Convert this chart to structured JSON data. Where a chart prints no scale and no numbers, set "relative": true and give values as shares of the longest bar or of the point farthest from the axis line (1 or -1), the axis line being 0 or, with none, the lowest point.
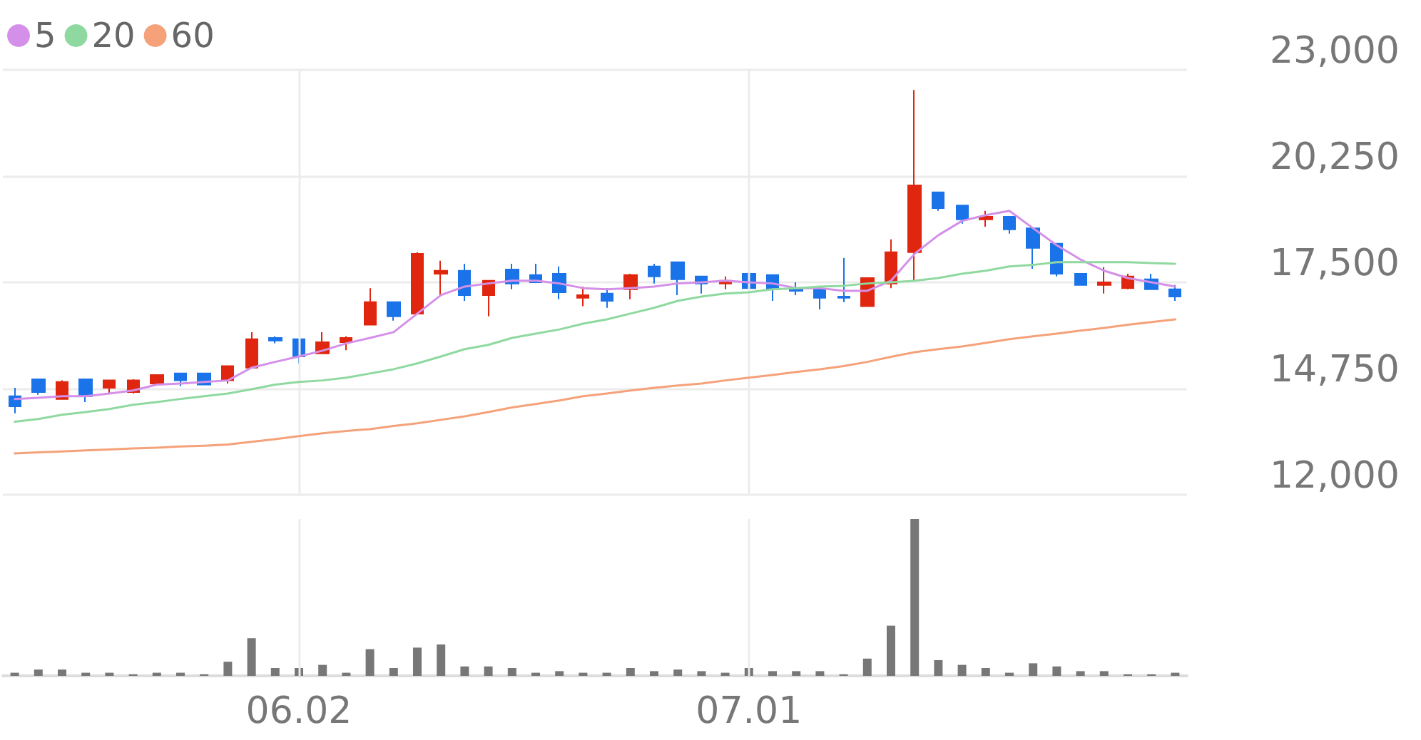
{
  "chart_data": [
    {
      "type": "candlestick",
      "categories": [
        null,
        null,
        null,
        null,
        null,
        null,
        null,
        null,
        null,
        null,
        null,
        null,
        "06.02",
        null,
        null,
        null,
        null,
        null,
        null,
        null,
        null,
        null,
        null,
        null,
        null,
        null,
        null,
        null,
        null,
        null,
        null,
        "07.01",
        null,
        null,
        null,
        null,
        null,
        null,
        null,
        null,
        null,
        null,
        null,
        null,
        null,
        null,
        null,
        null,
        null,
        null
      ],
      "tick_labels": "y",
      "ylim": [
        12000,
        23000
      ],
      "yticks": [
        {
          "value": 12000,
          "label": "12,000"
        },
        {
          "value": 14750,
          "label": "14,750"
        },
        {
          "value": 17500,
          "label": "17,500"
        },
        {
          "value": 20250,
          "label": "20,250"
        },
        {
          "value": 23000,
          "label": "23,000"
        }
      ],
      "grid": true,
      "legend": "top left",
      "marker": "none",
      "series": [
        {
          "type": "candlestick",
          "ohlc": [
            [
              14550,
              14770,
              14110,
              14290
            ],
            [
              14990,
              14990,
              14590,
              14660
            ],
            [
              14480,
              14960,
              14480,
              14920
            ],
            [
              14990,
              14990,
              14400,
              14550
            ],
            [
              14770,
              14960,
              14620,
              14960
            ],
            [
              14660,
              14990,
              14620,
              14960
            ],
            [
              14880,
              15100,
              14850,
              15100
            ],
            [
              15140,
              15140,
              14810,
              14960
            ],
            [
              15140,
              15140,
              14850,
              14850
            ],
            [
              14960,
              15330,
              14880,
              15330
            ],
            [
              15290,
              16210,
              15290,
              16030
            ],
            [
              16060,
              16100,
              15920,
              15990
            ],
            [
              16030,
              16030,
              15400,
              15580
            ],
            [
              15660,
              16210,
              15660,
              15950
            ],
            [
              15950,
              16100,
              15740,
              16060
            ],
            [
              16400,
              17350,
              16400,
              16990
            ],
            [
              16990,
              16990,
              16510,
              16620
            ],
            [
              16690,
              18280,
              16690,
              18240
            ],
            [
              17720,
              18060,
              17170,
              17800
            ],
            [
              17800,
              17980,
              17020,
              17170
            ],
            [
              17170,
              17540,
              16620,
              17540
            ],
            [
              17830,
              17980,
              17320,
              17470
            ],
            [
              17690,
              17980,
              17500,
              17500
            ],
            [
              17720,
              17910,
              17060,
              17240
            ],
            [
              17100,
              17390,
              16880,
              17170
            ],
            [
              17210,
              17350,
              16840,
              17020
            ],
            [
              17320,
              17720,
              17060,
              17690
            ],
            [
              17910,
              17980,
              17470,
              17650
            ],
            [
              18020,
              18020,
              17170,
              17580
            ],
            [
              17650,
              17650,
              17210,
              17470
            ],
            [
              17470,
              17650,
              17320,
              17540
            ],
            [
              17720,
              17760,
              17350,
              17350
            ],
            [
              17690,
              17690,
              17020,
              17320
            ],
            [
              17350,
              17500,
              17170,
              17280
            ],
            [
              17320,
              17320,
              16800,
              17100
            ],
            [
              17130,
              18130,
              16990,
              17100
            ],
            [
              16880,
              17610,
              16880,
              17610
            ],
            [
              17470,
              18610,
              17350,
              18280
            ],
            [
              18280,
              22480,
              17540,
              20010
            ],
            [
              19830,
              19830,
              19350,
              19420
            ],
            [
              19490,
              19490,
              19020,
              19130
            ],
            [
              19130,
              19350,
              18940,
              19200
            ],
            [
              19200,
              19200,
              18760,
              18870
            ],
            [
              18900,
              18900,
              17850,
              18390
            ],
            [
              18500,
              18500,
              17650,
              17720
            ],
            [
              17720,
              17720,
              17430,
              17430
            ],
            [
              17430,
              17890,
              17210,
              17500
            ],
            [
              17350,
              17720,
              17320,
              17650
            ],
            [
              17580,
              17720,
              17320,
              17320
            ],
            [
              17320,
              17430,
              17020,
              17130
            ]
          ],
          "colors": [
            "#1a73e8",
            "#1a73e8",
            "#e0260e",
            "#1a73e8",
            "#e0260e",
            "#e0260e",
            "#e0260e",
            "#1a73e8",
            "#1a73e8",
            "#e0260e",
            "#e0260e",
            "#1a73e8",
            "#1a73e8",
            "#e0260e",
            "#e0260e",
            "#e0260e",
            "#1a73e8",
            "#e0260e",
            "#e0260e",
            "#1a73e8",
            "#e0260e",
            "#1a73e8",
            "#1a73e8",
            "#1a73e8",
            "#e0260e",
            "#1a73e8",
            "#e0260e",
            "#1a73e8",
            "#1a73e8",
            "#1a73e8",
            "#e0260e",
            "#1a73e8",
            "#1a73e8",
            "#1a73e8",
            "#1a73e8",
            "#1a73e8",
            "#e0260e",
            "#e0260e",
            "#e0260e",
            "#1a73e8",
            "#1a73e8",
            "#e0260e",
            "#1a73e8",
            "#1a73e8",
            "#1a73e8",
            "#1a73e8",
            "#e0260e",
            "#e0260e",
            "#1a73e8",
            "#1a73e8"
          ]
        },
        {
          "type": "line",
          "name": "5",
          "color": "#d490e8",
          "values": [
            14480,
            14510,
            14550,
            14550,
            14620,
            14700,
            14850,
            14880,
            14920,
            14960,
            15290,
            15440,
            15580,
            15730,
            15920,
            16060,
            16210,
            16690,
            17170,
            17390,
            17470,
            17540,
            17540,
            17470,
            17350,
            17320,
            17350,
            17390,
            17470,
            17500,
            17540,
            17500,
            17470,
            17350,
            17350,
            17280,
            17280,
            17540,
            18240,
            18720,
            19090,
            19240,
            19350,
            18900,
            18460,
            18090,
            17800,
            17610,
            17500,
            17390
          ]
        },
        {
          "type": "line",
          "name": "20",
          "color": "#8fd9a0",
          "values": [
            13890,
            13960,
            14070,
            14140,
            14220,
            14330,
            14400,
            14480,
            14550,
            14620,
            14730,
            14850,
            14920,
            14960,
            15030,
            15140,
            15250,
            15400,
            15580,
            15770,
            15880,
            16060,
            16170,
            16280,
            16430,
            16540,
            16690,
            16840,
            17020,
            17130,
            17210,
            17240,
            17320,
            17350,
            17390,
            17410,
            17470,
            17500,
            17540,
            17610,
            17720,
            17800,
            17910,
            17950,
            18020,
            18020,
            18020,
            18020,
            18000,
            17980
          ]
        },
        {
          "type": "line",
          "name": "60",
          "color": "#f5a17a",
          "values": [
            13070,
            13100,
            13120,
            13150,
            13170,
            13200,
            13220,
            13250,
            13270,
            13300,
            13370,
            13440,
            13520,
            13590,
            13650,
            13700,
            13780,
            13850,
            13940,
            14030,
            14140,
            14260,
            14350,
            14440,
            14550,
            14620,
            14700,
            14770,
            14830,
            14880,
            14960,
            15030,
            15100,
            15180,
            15250,
            15330,
            15440,
            15570,
            15690,
            15770,
            15840,
            15930,
            16030,
            16100,
            16170,
            16250,
            16320,
            16400,
            16470,
            16540
          ]
        }
      ]
    },
    {
      "type": "bar",
      "relative": true,
      "categories": [
        null,
        null,
        null,
        null,
        null,
        null,
        null,
        null,
        null,
        null,
        null,
        null,
        "06.02",
        null,
        null,
        null,
        null,
        null,
        null,
        null,
        null,
        null,
        null,
        null,
        null,
        null,
        null,
        null,
        null,
        null,
        null,
        "07.01",
        null,
        null,
        null,
        null,
        null,
        null,
        null,
        null,
        null,
        null,
        null,
        null,
        null,
        null,
        null,
        null,
        null,
        null
      ],
      "tick_labels": "x",
      "grid": "x",
      "color": "#777777",
      "values": [
        0.02,
        0.04,
        0.04,
        0.02,
        0.02,
        0.01,
        0.02,
        0.02,
        0.01,
        0.09,
        0.24,
        0.05,
        0.05,
        0.07,
        0.02,
        0.17,
        0.05,
        0.18,
        0.2,
        0.06,
        0.06,
        0.05,
        0.02,
        0.03,
        0.02,
        0.02,
        0.05,
        0.03,
        0.04,
        0.03,
        0.02,
        0.05,
        0.03,
        0.03,
        0.03,
        0.01,
        0.11,
        0.32,
        1,
        0.1,
        0.07,
        0.05,
        0.02,
        0.08,
        0.06,
        0.03,
        0.03,
        0.01,
        0.01,
        0.02
      ]
    }
  ]
}
